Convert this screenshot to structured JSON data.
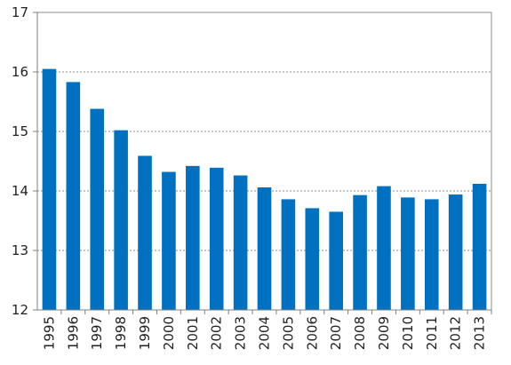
{
  "chart_data": {
    "type": "bar",
    "title": "",
    "xlabel": "",
    "ylabel": "",
    "categories": [
      "1995",
      "1996",
      "1997",
      "1998",
      "1999",
      "2000",
      "2001",
      "2002",
      "2003",
      "2004",
      "2005",
      "2006",
      "2007",
      "2008",
      "2009",
      "2010",
      "2011",
      "2012",
      "2013"
    ],
    "values": [
      16.05,
      15.83,
      15.38,
      15.02,
      14.59,
      14.32,
      14.42,
      14.39,
      14.26,
      14.06,
      13.86,
      13.71,
      13.65,
      13.93,
      14.08,
      13.89,
      13.86,
      13.94,
      14.12
    ],
    "ylim": [
      12,
      17
    ],
    "yticks": [
      "12",
      "13",
      "14",
      "15",
      "16",
      "17"
    ],
    "grid": true,
    "legend": "none",
    "bar_color": "#0070c0"
  }
}
